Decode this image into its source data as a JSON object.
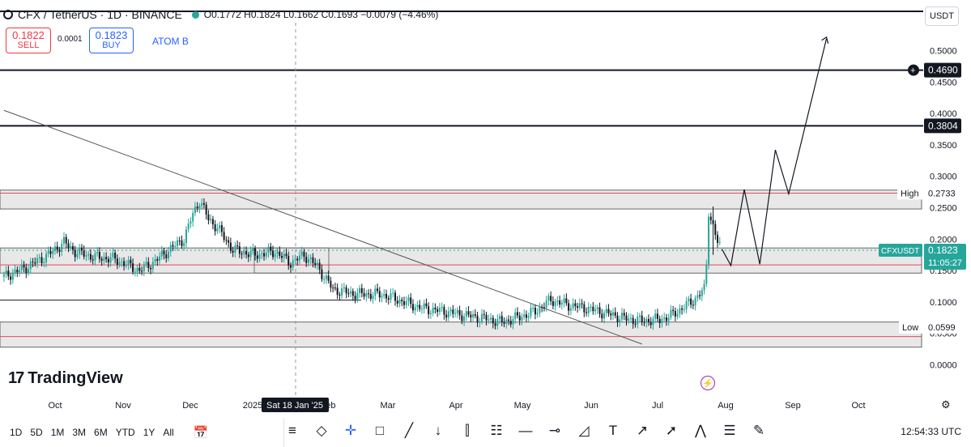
{
  "header": {
    "title": "CFX / TetherUS · 1D · BINANCE",
    "ohlc": "O0.1772 H0.1824 L0.1662 C0.1693 −0.0079 (−4.46%)",
    "sell_price": "0.1822",
    "sell_label": "SELL",
    "spread": "0.0001",
    "buy_price": "0.1823",
    "buy_label": "BUY",
    "broker_label": "ATOM B",
    "currency": "USDT"
  },
  "brand": {
    "logo_text": "TradingView",
    "logo_mark": "17"
  },
  "crosshair_date": "Sat 18 Jan '25",
  "bottom_bar": {
    "timeframes": [
      "1D",
      "5D",
      "1M",
      "3M",
      "6M",
      "YTD",
      "1Y",
      "All"
    ],
    "clock": "12:54:33 UTC"
  },
  "colors": {
    "up": "#26a69a",
    "down": "#131722",
    "zone_fill": "#e8e8e8",
    "red_line": "#e04c5a",
    "price_label": "#26a69a"
  },
  "chart_data": {
    "type": "candlestick",
    "symbol": "CFXUSDT",
    "x_months": [
      "Oct",
      "Nov",
      "Dec",
      "2025",
      "Feb",
      "Mar",
      "Apr",
      "May",
      "Jun",
      "Jul",
      "Aug",
      "Sep",
      "Oct"
    ],
    "y_ticks": [
      0.5,
      0.45,
      0.4,
      0.35,
      0.3,
      0.25,
      0.2,
      0.15,
      0.1,
      0.05,
      0.0
    ],
    "ylim": [
      -0.02,
      0.56
    ],
    "price_levels": [
      {
        "label": "0.4690",
        "value": 0.469
      },
      {
        "label": "0.3804",
        "value": 0.3804
      }
    ],
    "high": {
      "label": "High",
      "value": "0.2733"
    },
    "low": {
      "label": "Low",
      "value": "0.0599"
    },
    "last": {
      "label": "CFXUSDT",
      "value": "0.1823",
      "countdown": "11:05:27"
    },
    "zones": [
      {
        "top": 0.278,
        "bottom": 0.248
      },
      {
        "top": 0.186,
        "bottom": 0.146
      },
      {
        "top": 0.068,
        "bottom": 0.028
      }
    ],
    "trend_line": {
      "from": [
        "2024-09-08",
        0.405
      ],
      "to": [
        "2025-06-22",
        0.033
      ]
    },
    "projection": [
      [
        "2025-07-28",
        0.184
      ],
      [
        "2025-08-01",
        0.158
      ],
      [
        "2025-08-07",
        0.279
      ],
      [
        "2025-08-14",
        0.16
      ],
      [
        "2025-08-21",
        0.342
      ],
      [
        "2025-08-27",
        0.272
      ],
      [
        "2025-09-13",
        0.519
      ]
    ],
    "closes": [
      [
        "2024-09-08",
        0.14
      ],
      [
        "2024-09-18",
        0.155
      ],
      [
        "2024-09-28",
        0.175
      ],
      [
        "2024-10-05",
        0.195
      ],
      [
        "2024-10-10",
        0.18
      ],
      [
        "2024-10-18",
        0.172
      ],
      [
        "2024-10-28",
        0.168
      ],
      [
        "2024-11-08",
        0.15
      ],
      [
        "2024-11-15",
        0.165
      ],
      [
        "2024-11-22",
        0.185
      ],
      [
        "2024-11-28",
        0.2
      ],
      [
        "2024-12-02",
        0.24
      ],
      [
        "2024-12-05",
        0.262
      ],
      [
        "2024-12-09",
        0.232
      ],
      [
        "2024-12-13",
        0.218
      ],
      [
        "2024-12-20",
        0.183
      ],
      [
        "2024-12-30",
        0.175
      ],
      [
        "2025-01-08",
        0.18
      ],
      [
        "2025-01-15",
        0.162
      ],
      [
        "2025-01-21",
        0.175
      ],
      [
        "2025-01-27",
        0.156
      ],
      [
        "2025-02-03",
        0.12
      ],
      [
        "2025-02-12",
        0.113
      ],
      [
        "2025-02-25",
        0.112
      ],
      [
        "2025-03-03",
        0.105
      ],
      [
        "2025-03-15",
        0.09
      ],
      [
        "2025-03-25",
        0.085
      ],
      [
        "2025-04-01",
        0.08
      ],
      [
        "2025-04-10",
        0.075
      ],
      [
        "2025-04-20",
        0.068
      ],
      [
        "2025-04-28",
        0.076
      ],
      [
        "2025-05-05",
        0.085
      ],
      [
        "2025-05-12",
        0.103
      ],
      [
        "2025-05-20",
        0.095
      ],
      [
        "2025-05-28",
        0.09
      ],
      [
        "2025-06-08",
        0.08
      ],
      [
        "2025-06-15",
        0.073
      ],
      [
        "2025-06-22",
        0.07
      ],
      [
        "2025-06-30",
        0.072
      ],
      [
        "2025-07-05",
        0.078
      ],
      [
        "2025-07-10",
        0.09
      ],
      [
        "2025-07-15",
        0.102
      ],
      [
        "2025-07-20",
        0.12
      ],
      [
        "2025-07-21",
        0.16
      ],
      [
        "2025-07-22",
        0.245
      ],
      [
        "2025-07-24",
        0.22
      ],
      [
        "2025-07-26",
        0.195
      ],
      [
        "2025-07-28",
        0.182
      ]
    ]
  }
}
